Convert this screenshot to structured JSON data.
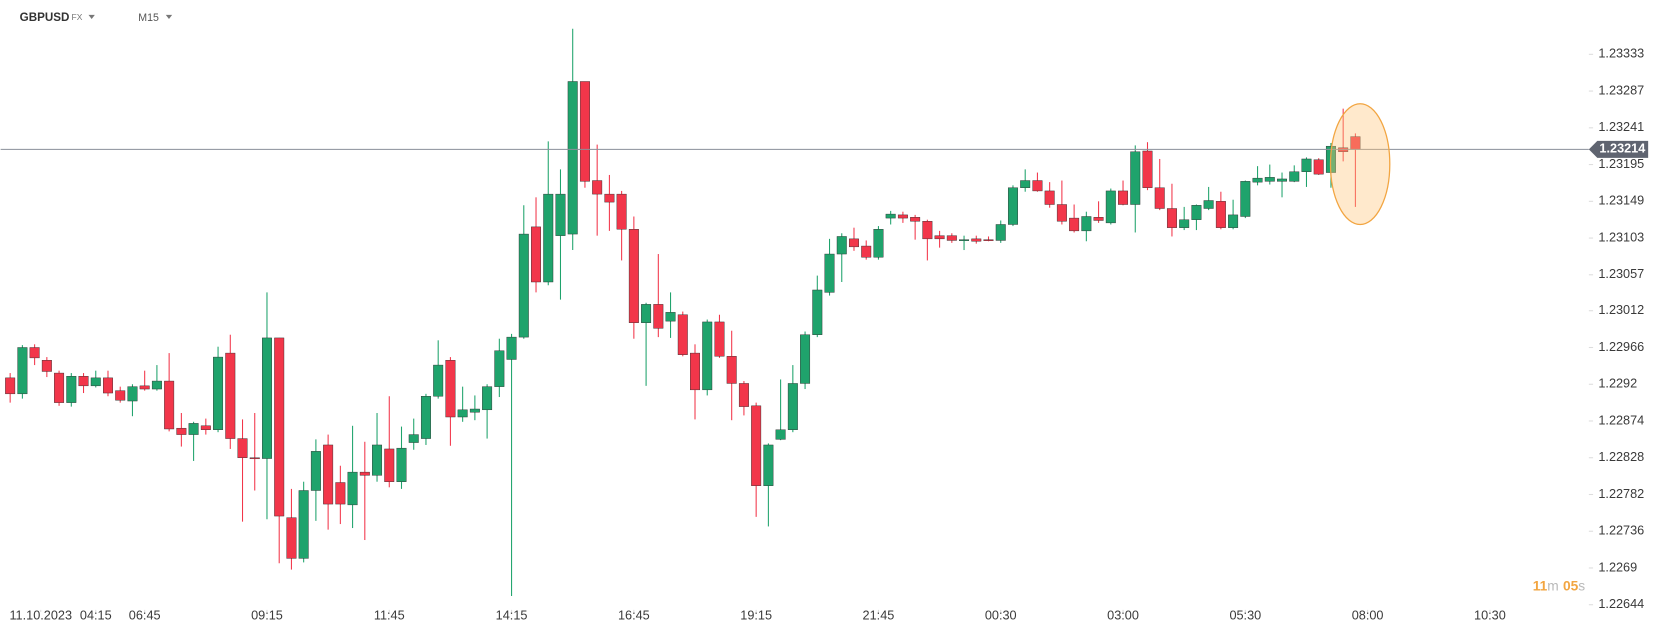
{
  "header": {
    "symbol": "GBPUSD",
    "market": "FX",
    "timeframe": "M15"
  },
  "chart_data": {
    "type": "candlestick",
    "up_color": "#1fa36c",
    "down_color": "#f2364a",
    "open": [
      1.22928,
      1.22908,
      1.22966,
      1.2295,
      1.22934,
      1.22897,
      1.2293,
      1.22918,
      1.22928,
      1.22912,
      1.22899,
      1.22918,
      1.22914,
      1.22924,
      1.22865,
      1.22857,
      1.22868,
      1.22863,
      1.22959,
      1.22852,
      1.22828,
      1.22827,
      1.22978,
      1.22753,
      1.22702,
      1.22787,
      1.22844,
      1.22797,
      1.22769,
      1.2281,
      1.22806,
      1.22839,
      1.22798,
      1.22847,
      1.22852,
      1.22905,
      1.2295,
      1.22879,
      1.22885,
      1.22888,
      1.22917,
      1.22951,
      1.22979,
      1.23117,
      1.23048,
      1.23106,
      1.23108,
      1.23299,
      1.23175,
      1.23158,
      1.23158,
      1.23114,
      1.22997,
      1.2302,
      1.22999,
      1.23007,
      1.22959,
      1.22913,
      1.22998,
      1.22955,
      1.22921,
      1.22893,
      1.22793,
      1.22851,
      1.22863,
      1.22921,
      1.22982,
      1.23035,
      1.23083,
      1.23102,
      1.23093,
      1.23079,
      1.23128,
      1.23132,
      1.23129,
      1.23124,
      1.23106,
      1.23106,
      1.231,
      1.23102,
      1.23101,
      1.231,
      1.2312,
      1.23166,
      1.23175,
      1.23162,
      1.23145,
      1.23128,
      1.23112,
      1.23129,
      1.23122,
      1.23162,
      1.23145,
      1.23212,
      1.23166,
      1.2314,
      1.23116,
      1.23126,
      1.2314,
      1.23149,
      1.23116,
      1.2313,
      1.23173,
      1.23174,
      1.23174,
      1.23174,
      1.23186,
      1.23201,
      1.23185,
      1.23216,
      1.2323
    ],
    "high": [
      1.22934,
      1.22969,
      1.2297,
      1.22954,
      1.22937,
      1.22934,
      1.22934,
      1.22937,
      1.22937,
      1.22917,
      1.2292,
      1.22937,
      1.22944,
      1.22959,
      1.22884,
      1.22873,
      1.22877,
      1.22967,
      1.22982,
      1.22876,
      1.22884,
      1.23035,
      1.22978,
      1.22789,
      1.22798,
      1.22851,
      1.22857,
      1.22818,
      1.22868,
      1.22848,
      1.22884,
      1.22905,
      1.22867,
      1.22877,
      1.22908,
      1.22975,
      1.22954,
      1.22917,
      1.22906,
      1.2292,
      1.22977,
      1.22983,
      1.23144,
      1.23154,
      1.23224,
      1.23189,
      1.23365,
      1.23299,
      1.2322,
      1.23182,
      1.23162,
      1.2313,
      1.23022,
      1.23083,
      1.23035,
      1.23011,
      1.2297,
      1.23001,
      1.23007,
      1.22987,
      1.22924,
      1.22897,
      1.22846,
      1.22926,
      1.22944,
      1.22986,
      1.23056,
      1.23102,
      1.23109,
      1.23116,
      1.231,
      1.23118,
      1.23137,
      1.23136,
      1.23132,
      1.23126,
      1.23112,
      1.23109,
      1.23106,
      1.23106,
      1.23105,
      1.23125,
      1.23169,
      1.23189,
      1.23185,
      1.23173,
      1.23175,
      1.23145,
      1.23136,
      1.23149,
      1.23165,
      1.23175,
      1.23219,
      1.23223,
      1.23202,
      1.23171,
      1.23142,
      1.23145,
      1.23167,
      1.23161,
      1.23151,
      1.23175,
      1.23193,
      1.23195,
      1.23185,
      1.23194,
      1.23204,
      1.23203,
      1.23222,
      1.23265,
      1.23234
    ],
    "low": [
      1.22897,
      1.22902,
      1.22944,
      1.22929,
      1.22893,
      1.22892,
      1.22909,
      1.22916,
      1.22905,
      1.22897,
      1.2288,
      1.22912,
      1.22912,
      1.22861,
      1.22842,
      1.22824,
      1.22857,
      1.2286,
      1.22839,
      1.22748,
      1.22787,
      1.22751,
      1.22696,
      1.22688,
      1.22697,
      1.22749,
      1.22738,
      1.22745,
      1.2274,
      1.22725,
      1.22798,
      1.22791,
      1.22789,
      1.22838,
      1.22844,
      1.22902,
      1.22843,
      1.22873,
      1.22875,
      1.22852,
      1.22904,
      1.22655,
      1.22977,
      1.23035,
      1.23044,
      1.23026,
      1.23088,
      1.23166,
      1.23106,
      1.23112,
      1.23075,
      1.22977,
      1.22918,
      1.22979,
      1.22978,
      1.22955,
      1.22876,
      1.22906,
      1.22953,
      1.22875,
      1.22881,
      1.22754,
      1.22742,
      1.2285,
      1.2286,
      1.22914,
      1.22979,
      1.23031,
      1.23048,
      1.23087,
      1.23076,
      1.23076,
      1.2312,
      1.23122,
      1.23101,
      1.23075,
      1.23091,
      1.23097,
      1.23088,
      1.23096,
      1.23099,
      1.23097,
      1.23118,
      1.23161,
      1.23161,
      1.23141,
      1.2312,
      1.2311,
      1.23099,
      1.23122,
      1.2312,
      1.23144,
      1.2311,
      1.23163,
      1.23138,
      1.23105,
      1.23113,
      1.23113,
      1.23138,
      1.23114,
      1.23114,
      1.23128,
      1.23169,
      1.2317,
      1.23154,
      1.23173,
      1.23167,
      1.23182,
      1.23166,
      1.23199,
      1.23142
    ],
    "close": [
      1.22908,
      1.22966,
      1.22953,
      1.22936,
      1.22897,
      1.2293,
      1.22918,
      1.22928,
      1.22909,
      1.229,
      1.22917,
      1.22914,
      1.22924,
      1.22864,
      1.22857,
      1.22871,
      1.22863,
      1.22954,
      1.22852,
      1.22828,
      1.22827,
      1.22978,
      1.22755,
      1.22702,
      1.22787,
      1.22836,
      1.2277,
      1.2277,
      1.2281,
      1.22806,
      1.22844,
      1.22798,
      1.2284,
      1.22857,
      1.22905,
      1.22944,
      1.22879,
      1.22888,
      1.22889,
      1.22917,
      1.22962,
      1.22979,
      1.23108,
      1.23048,
      1.23158,
      1.23158,
      1.23299,
      1.23174,
      1.23158,
      1.23148,
      1.23114,
      1.22997,
      1.2302,
      1.2299,
      1.2301,
      1.22957,
      1.22913,
      1.22998,
      1.22955,
      1.22921,
      1.22892,
      1.22793,
      1.22844,
      1.22863,
      1.22921,
      1.22982,
      1.23038,
      1.23083,
      1.23105,
      1.23092,
      1.23079,
      1.23114,
      1.23133,
      1.23128,
      1.23124,
      1.23102,
      1.23102,
      1.231,
      1.23101,
      1.23099,
      1.231,
      1.2312,
      1.23166,
      1.23175,
      1.23162,
      1.23145,
      1.23124,
      1.23112,
      1.2313,
      1.23125,
      1.23162,
      1.23145,
      1.23211,
      1.23166,
      1.2314,
      1.23116,
      1.23126,
      1.23144,
      1.2315,
      1.23116,
      1.23132,
      1.23174,
      1.23178,
      1.23179,
      1.23177,
      1.23186,
      1.23202,
      1.23183,
      1.23218,
      1.23211,
      1.23214
    ],
    "ylim": [
      1.22619,
      1.23401
    ],
    "yticks": [
      1.23333,
      1.23287,
      1.23241,
      1.23195,
      1.23149,
      1.23103,
      1.23057,
      1.23012,
      1.22966,
      1.2292,
      1.22874,
      1.22828,
      1.22782,
      1.22736,
      1.2269,
      1.22644
    ],
    "xlim": [
      -0.78,
      129.09
    ],
    "xticks": [
      {
        "value": 2.5,
        "label": "11.10.2023"
      },
      {
        "value": 7,
        "label": "04:15"
      },
      {
        "value": 11,
        "label": "06:45"
      },
      {
        "value": 21,
        "label": "09:15"
      },
      {
        "value": 31,
        "label": "11:45"
      },
      {
        "value": 41,
        "label": "14:15"
      },
      {
        "value": 51,
        "label": "16:45"
      },
      {
        "value": 61,
        "label": "19:15"
      },
      {
        "value": 71,
        "label": "21:45"
      },
      {
        "value": 81,
        "label": "00:30"
      },
      {
        "value": 91,
        "label": "03:00"
      },
      {
        "value": 101,
        "label": "05:30"
      },
      {
        "value": 111,
        "label": "08:00"
      },
      {
        "value": 121,
        "label": "10:30"
      }
    ],
    "last_price": 1.23214,
    "countdown": [
      {
        "value": "11",
        "unit": "m"
      },
      {
        "value": "05",
        "unit": "s"
      }
    ]
  }
}
